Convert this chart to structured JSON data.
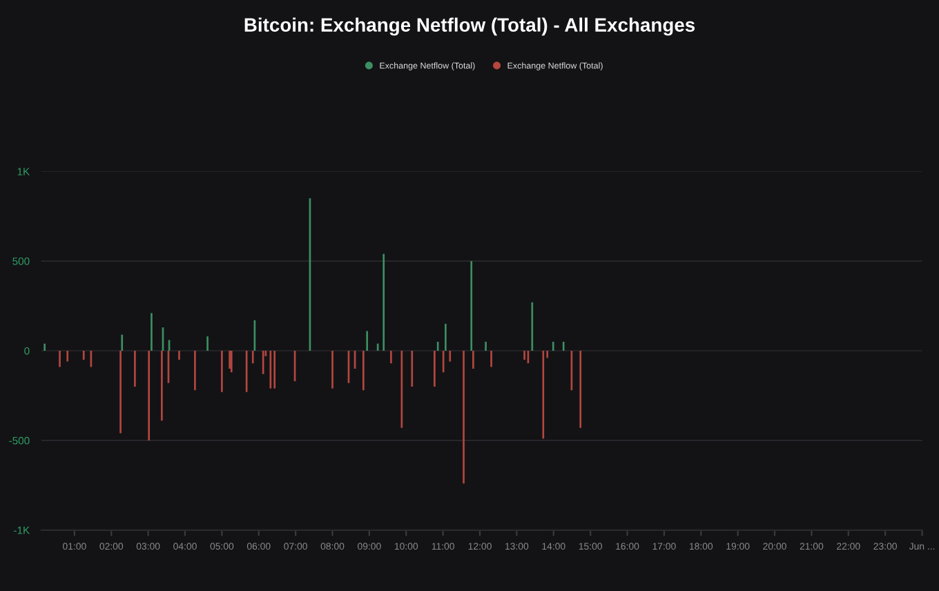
{
  "chart_data": {
    "type": "bar",
    "title": "Bitcoin: Exchange Netflow (Total) - All Exchanges",
    "xlim": [
      0.1,
      24
    ],
    "ylim": [
      -1000,
      1000
    ],
    "xticks": [
      {
        "value": 1,
        "label": "01:00"
      },
      {
        "value": 2,
        "label": "02:00"
      },
      {
        "value": 3,
        "label": "03:00"
      },
      {
        "value": 4,
        "label": "04:00"
      },
      {
        "value": 5,
        "label": "05:00"
      },
      {
        "value": 6,
        "label": "06:00"
      },
      {
        "value": 7,
        "label": "07:00"
      },
      {
        "value": 8,
        "label": "08:00"
      },
      {
        "value": 9,
        "label": "09:00"
      },
      {
        "value": 10,
        "label": "10:00"
      },
      {
        "value": 11,
        "label": "11:00"
      },
      {
        "value": 12,
        "label": "12:00"
      },
      {
        "value": 13,
        "label": "13:00"
      },
      {
        "value": 14,
        "label": "14:00"
      },
      {
        "value": 15,
        "label": "15:00"
      },
      {
        "value": 16,
        "label": "16:00"
      },
      {
        "value": 17,
        "label": "17:00"
      },
      {
        "value": 18,
        "label": "18:00"
      },
      {
        "value": 19,
        "label": "19:00"
      },
      {
        "value": 20,
        "label": "20:00"
      },
      {
        "value": 21,
        "label": "21:00"
      },
      {
        "value": 22,
        "label": "22:00"
      },
      {
        "value": 23,
        "label": "23:00"
      },
      {
        "value": 24,
        "label": "Jun ..."
      }
    ],
    "yticks": [
      {
        "value": -1000,
        "label": "-1K"
      },
      -500,
      0,
      500,
      {
        "value": 1000,
        "label": "1K"
      }
    ],
    "grid": "y",
    "legend": "top",
    "series": [
      {
        "name": "Exchange Netflow (Total)",
        "color": "#3d8f62",
        "x": [
          0.19,
          2.29,
          3.09,
          3.4,
          3.57,
          4.61,
          5.89,
          7.39,
          8.94,
          9.23,
          9.39,
          10.86,
          11.07,
          11.77,
          12.16,
          13.42,
          13.99,
          14.27
        ],
        "values": [
          40,
          90,
          210,
          130,
          60,
          80,
          170,
          850,
          110,
          40,
          540,
          50,
          150,
          500,
          50,
          270,
          50,
          50
        ]
      },
      {
        "name": "Exchange Netflow (Total)",
        "color": "#b4473f",
        "x": [
          0.6,
          0.81,
          1.25,
          1.45,
          2.25,
          2.64,
          3.02,
          3.37,
          3.55,
          3.84,
          4.27,
          5.0,
          5.21,
          5.26,
          5.67,
          5.84,
          6.12,
          6.19,
          6.32,
          6.43,
          6.98,
          8.0,
          8.44,
          8.61,
          8.84,
          9.59,
          9.88,
          10.16,
          10.77,
          11.01,
          11.19,
          11.56,
          11.82,
          12.31,
          13.21,
          13.31,
          13.72,
          13.83,
          14.49,
          14.73
        ],
        "values": [
          -90,
          -60,
          -50,
          -90,
          -460,
          -200,
          -500,
          -390,
          -180,
          -50,
          -220,
          -230,
          -100,
          -120,
          -230,
          -70,
          -130,
          -30,
          -210,
          -210,
          -170,
          -210,
          -180,
          -100,
          -220,
          -70,
          -430,
          -200,
          -200,
          -120,
          -60,
          -740,
          -100,
          -90,
          -50,
          -70,
          -490,
          -40,
          -220,
          -430
        ]
      }
    ]
  }
}
